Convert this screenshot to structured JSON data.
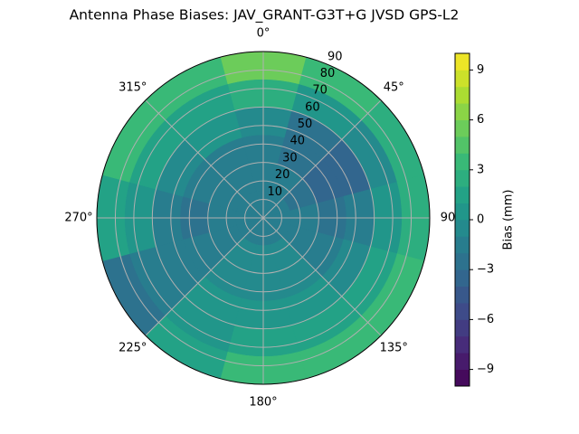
{
  "chart_data": {
    "type": "polar-contour",
    "title": "Antenna Phase Biases: JAV_GRANT-G3T+G JVSD GPS-L2",
    "theta": [
      0,
      30,
      60,
      90,
      120,
      150,
      180,
      210,
      240,
      270,
      300,
      330
    ],
    "r": [
      7.5,
      22.5,
      37.5,
      52.5,
      67.5,
      82.5
    ],
    "values": [
      [
        -2,
        -2,
        -2,
        -2,
        -2,
        -2,
        -2,
        -2,
        -2,
        -2,
        -2,
        -2
      ],
      [
        -2,
        -2,
        -3,
        -2,
        -2,
        -1,
        -1,
        -1,
        -2,
        -2,
        -2,
        -2
      ],
      [
        -2,
        -3,
        -4,
        -3,
        -2,
        -1,
        -1,
        -1,
        -2,
        -3,
        -2,
        -2
      ],
      [
        -1,
        -3,
        -4,
        -2,
        -1,
        0,
        0,
        0,
        -2,
        -2,
        -1,
        0
      ],
      [
        2,
        0,
        -1,
        0,
        1,
        1,
        1,
        0,
        -2,
        0,
        1,
        1
      ],
      [
        5,
        3,
        2,
        2,
        3,
        3,
        3,
        1,
        -3,
        1,
        3,
        3
      ]
    ],
    "rlim": [
      0,
      90
    ],
    "rticks": [
      10,
      20,
      30,
      40,
      50,
      60,
      70,
      80,
      90
    ],
    "thetaticks": [
      {
        "value": 0,
        "label": "0°"
      },
      {
        "value": 45,
        "label": "45°"
      },
      {
        "value": 90,
        "label": "90"
      },
      {
        "value": 135,
        "label": "135°"
      },
      {
        "value": 180,
        "label": "180°"
      },
      {
        "value": 225,
        "label": "225°"
      },
      {
        "value": 270,
        "label": "270°"
      },
      {
        "value": 315,
        "label": "315°"
      }
    ],
    "colormap": "viridis",
    "clim": [
      -10,
      10
    ],
    "cticks": [
      {
        "value": -9,
        "label": "−9"
      },
      {
        "value": -6,
        "label": "−6"
      },
      {
        "value": -3,
        "label": "−3"
      },
      0,
      3,
      6,
      9
    ],
    "colorbar_label": "Bias (mm)",
    "grid": true
  }
}
